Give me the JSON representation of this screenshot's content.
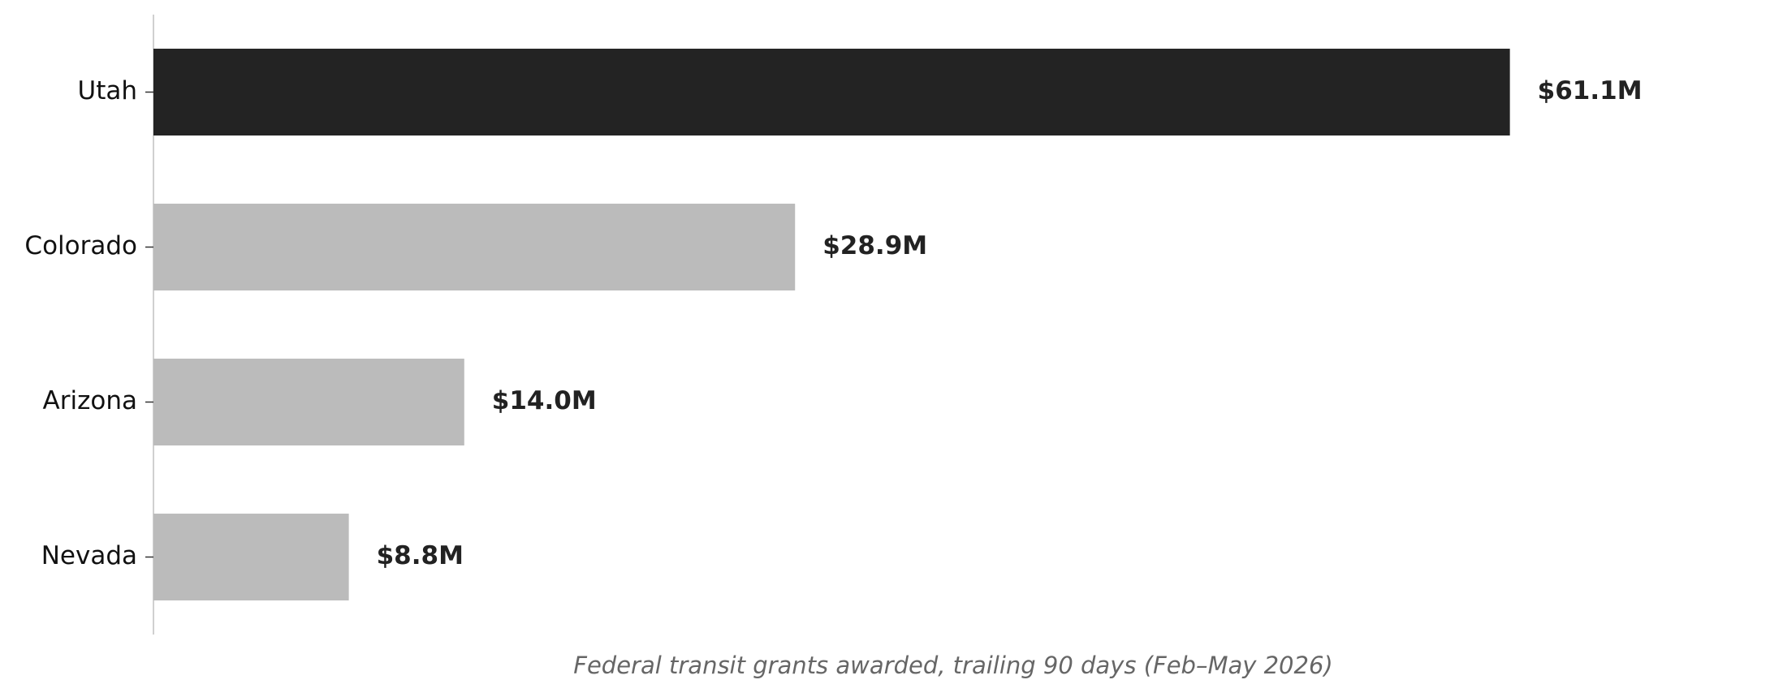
{
  "chart_data": {
    "type": "barh",
    "xlabel": "Federal transit grants awarded, trailing 90 days (Feb–May 2026)",
    "categories": [
      "Utah",
      "Colorado",
      "Arizona",
      "Nevada"
    ],
    "values": [
      61.1,
      28.9,
      14.0,
      8.8
    ],
    "value_labels": [
      "$61.1M",
      "$28.9M",
      "$14.0M",
      "$8.8M"
    ],
    "colors": [
      "#232323",
      "#bbbbbb",
      "#bbbbbb",
      "#bbbbbb"
    ],
    "xlim": [
      0,
      70
    ],
    "grid": false
  }
}
